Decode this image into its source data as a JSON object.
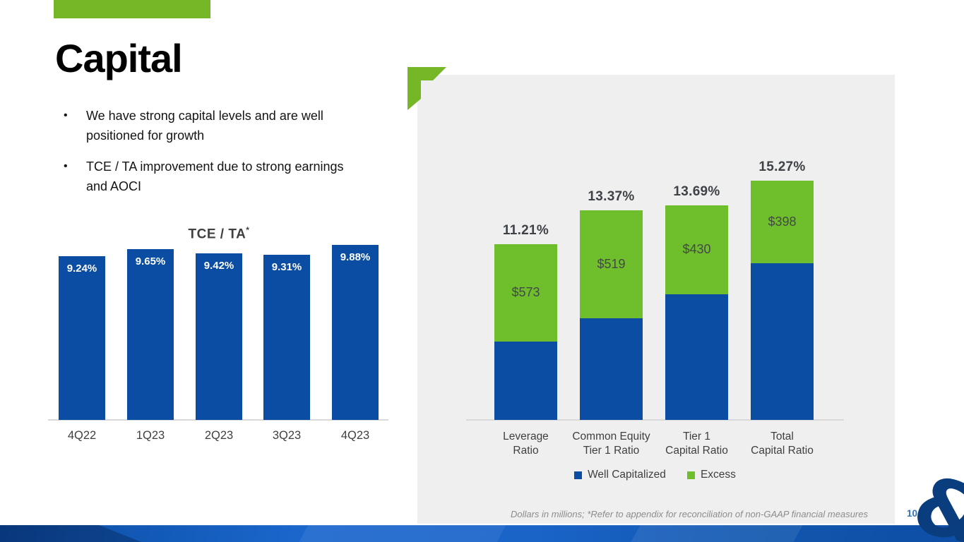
{
  "slide": {
    "title": "Capital",
    "bullets": [
      "We have strong capital levels and are well positioned for growth",
      "TCE / TA improvement due to strong earnings and AOCI"
    ],
    "footnote": "Dollars in millions; *Refer to appendix for reconciliation of non-GAAP financial measures",
    "page_number": "10",
    "logo_glyph": "&"
  },
  "colors": {
    "brand_green": "#75B727",
    "chart_green": "#6FBE2B",
    "chart_blue": "#0A4DA2",
    "panel_gray": "#EFEFEF",
    "axis_gray": "#D9D9D9",
    "text_dark": "#404040",
    "footnote_gray": "#8C8C8C",
    "page_number_blue": "#2E74B5",
    "logo_navy": "#0A3D7D"
  },
  "chart_data": [
    {
      "type": "bar",
      "title": "TCE / TA",
      "title_note_marker": "*",
      "categories": [
        "4Q22",
        "1Q23",
        "2Q23",
        "3Q23",
        "4Q23"
      ],
      "values": [
        9.24,
        9.65,
        9.42,
        9.31,
        9.88
      ],
      "data_labels": [
        "9.24%",
        "9.65%",
        "9.42%",
        "9.31%",
        "9.88%"
      ],
      "ylim": [
        0,
        9.88
      ],
      "bar_color": "#0A4DA2",
      "data_label_color": "#FFFFFF",
      "grid": false,
      "legend_position": "none"
    },
    {
      "type": "bar",
      "stacked": true,
      "categories": [
        [
          "Leverage",
          "Ratio"
        ],
        [
          "Common Equity",
          "Tier 1 Ratio"
        ],
        [
          "Tier 1",
          "Capital Ratio"
        ],
        [
          "Total",
          "Capital Ratio"
        ]
      ],
      "series": [
        {
          "name": "Well Capitalized",
          "color": "#0A4DA2",
          "values": [
            5.0,
            6.5,
            8.0,
            10.0
          ]
        },
        {
          "name": "Excess",
          "color": "#6FBE2B",
          "values": [
            6.21,
            6.87,
            5.69,
            5.27
          ],
          "data_labels": [
            "$573",
            "$519",
            "$430",
            "$398"
          ]
        }
      ],
      "totals_labels": [
        "11.21%",
        "13.37%",
        "13.69%",
        "15.27%"
      ],
      "ylim": [
        0,
        15.27
      ],
      "legend": [
        "Well Capitalized",
        "Excess"
      ],
      "legend_position": "bottom",
      "grid": false
    }
  ]
}
